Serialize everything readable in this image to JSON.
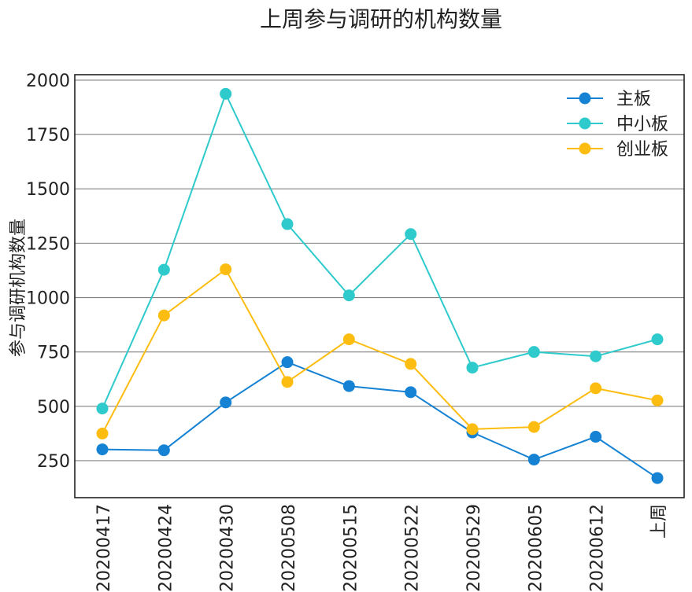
{
  "chart_data": {
    "type": "line",
    "title": "上周参与调研的机构数量",
    "xlabel": "",
    "ylabel": "参与调研机构数量",
    "categories": [
      "20200417",
      "20200424",
      "20200430",
      "20200508",
      "20200515",
      "20200522",
      "20200529",
      "20200605",
      "20200612",
      "上周"
    ],
    "ylim": [
      80,
      2025
    ],
    "yticks": [
      250,
      500,
      750,
      1000,
      1250,
      1500,
      1750,
      2000
    ],
    "grid": "horizontal",
    "legend_position": "top-right",
    "series": [
      {
        "name": "主板",
        "color": "#1582d4",
        "values": [
          302,
          298,
          518,
          703,
          593,
          565,
          380,
          255,
          360,
          170
        ]
      },
      {
        "name": "中小板",
        "color": "#2ecacc",
        "values": [
          490,
          1128,
          1937,
          1338,
          1010,
          1292,
          678,
          750,
          730,
          808
        ]
      },
      {
        "name": "创业板",
        "color": "#fdbd10",
        "values": [
          375,
          918,
          1130,
          612,
          808,
          695,
          395,
          405,
          583,
          527
        ]
      }
    ]
  }
}
